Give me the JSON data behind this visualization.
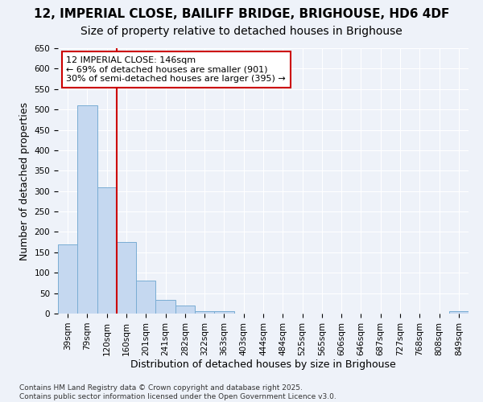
{
  "title_line1": "12, IMPERIAL CLOSE, BAILIFF BRIDGE, BRIGHOUSE, HD6 4DF",
  "title_line2": "Size of property relative to detached houses in Brighouse",
  "xlabel": "Distribution of detached houses by size in Brighouse",
  "ylabel": "Number of detached properties",
  "bar_labels": [
    "39sqm",
    "79sqm",
    "120sqm",
    "160sqm",
    "201sqm",
    "241sqm",
    "282sqm",
    "322sqm",
    "363sqm",
    "403sqm",
    "444sqm",
    "484sqm",
    "525sqm",
    "565sqm",
    "606sqm",
    "646sqm",
    "687sqm",
    "727sqm",
    "768sqm",
    "808sqm",
    "849sqm"
  ],
  "bar_values": [
    170,
    510,
    310,
    175,
    80,
    33,
    20,
    5,
    5,
    0,
    0,
    0,
    0,
    0,
    0,
    0,
    0,
    0,
    0,
    0,
    5
  ],
  "bar_color": "#c5d8f0",
  "bar_edge_color": "#7aadd4",
  "annotation_text": "12 IMPERIAL CLOSE: 146sqm\n← 69% of detached houses are smaller (901)\n30% of semi-detached houses are larger (395) →",
  "vline_x": 2.5,
  "vline_color": "#cc0000",
  "box_color": "#cc0000",
  "ylim": [
    0,
    650
  ],
  "yticks": [
    0,
    50,
    100,
    150,
    200,
    250,
    300,
    350,
    400,
    450,
    500,
    550,
    600,
    650
  ],
  "bg_color": "#eef2f9",
  "grid_color": "#ffffff",
  "footer_line1": "Contains HM Land Registry data © Crown copyright and database right 2025.",
  "footer_line2": "Contains public sector information licensed under the Open Government Licence v3.0.",
  "title_fontsize": 11,
  "subtitle_fontsize": 10,
  "axis_label_fontsize": 9,
  "tick_fontsize": 7.5,
  "annotation_fontsize": 8,
  "footer_fontsize": 6.5
}
